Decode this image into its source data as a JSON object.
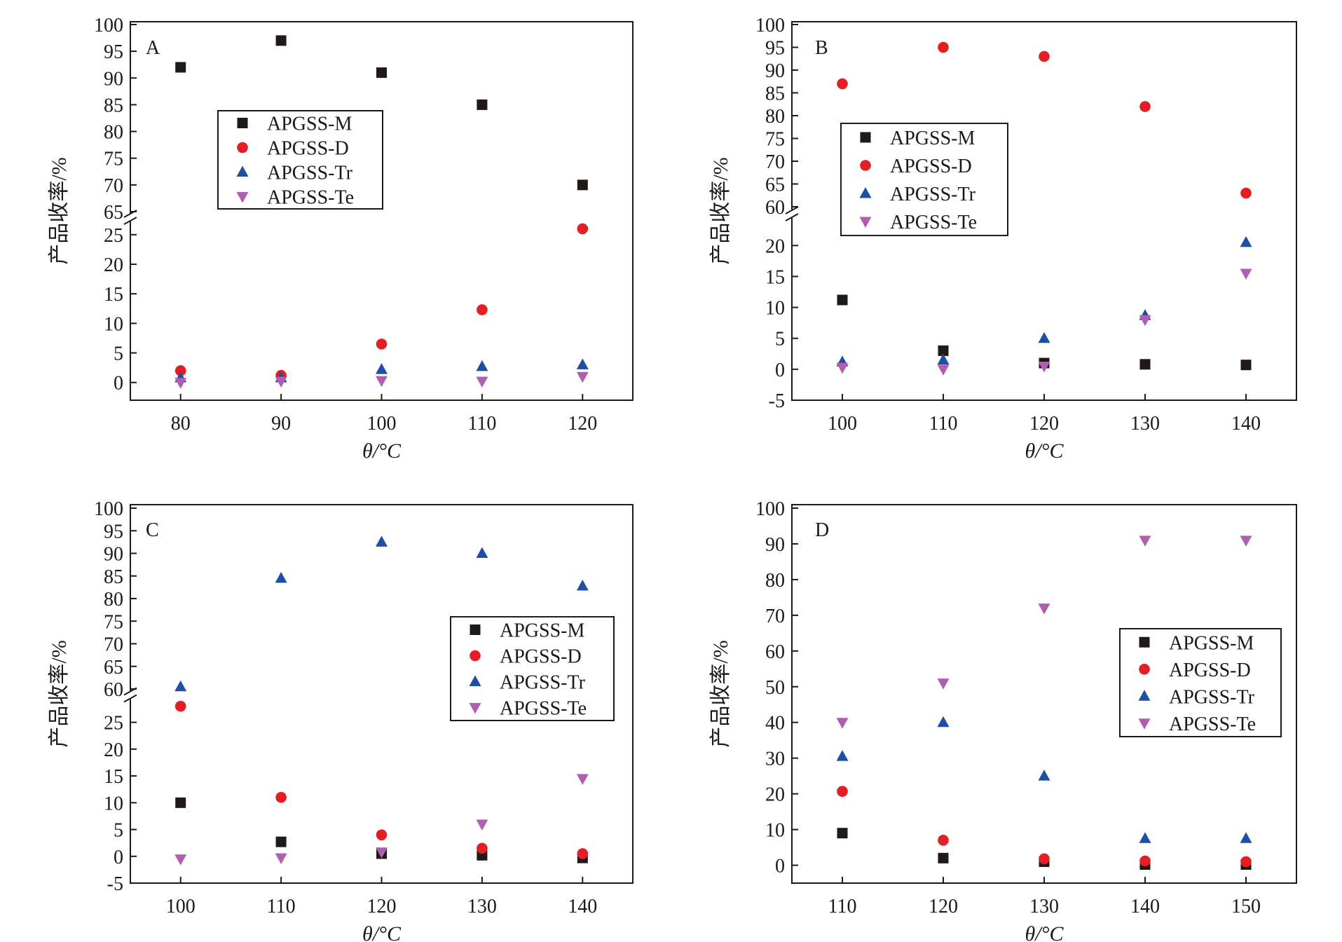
{
  "colors": {
    "APGSS-M": "#1f1a17",
    "APGSS-D": "#e31e24",
    "APGSS-Tr": "#1f4fa3",
    "APGSS-Te": "#b05fb0"
  },
  "chart_data": [
    {
      "type": "scatter",
      "panel_label": "A",
      "xlabel": "θ/°C",
      "ylabel": "产品收率/%",
      "x": [
        80,
        90,
        100,
        110,
        120
      ],
      "x_ticks": [
        "80",
        "90",
        "100",
        "110",
        "120"
      ],
      "xlim": [
        75,
        125
      ],
      "y_axis_break": true,
      "ylim_lower": [
        -3,
        27
      ],
      "ylim_upper": [
        65,
        100
      ],
      "y_ticks_lower": [
        0,
        5,
        10,
        15,
        20,
        25
      ],
      "y_ticks_upper": [
        65,
        70,
        75,
        80,
        85,
        90,
        95,
        100
      ],
      "legend_position": "center",
      "series": [
        {
          "name": "APGSS-M",
          "marker": "square",
          "values": [
            92,
            97,
            91,
            85,
            70
          ]
        },
        {
          "name": "APGSS-D",
          "marker": "circle",
          "values": [
            2,
            1.2,
            6.5,
            12.3,
            26
          ]
        },
        {
          "name": "APGSS-Tr",
          "marker": "triangle-up",
          "values": [
            0.8,
            0.8,
            2.2,
            2.7,
            3
          ]
        },
        {
          "name": "APGSS-Te",
          "marker": "triangle-down",
          "values": [
            0,
            0.2,
            0.3,
            0.2,
            1
          ]
        }
      ]
    },
    {
      "type": "scatter",
      "panel_label": "B",
      "xlabel": "θ/°C",
      "ylabel": "产品收率/%",
      "x": [
        100,
        110,
        120,
        130,
        140
      ],
      "x_ticks": [
        "100",
        "110",
        "120",
        "130",
        "140"
      ],
      "xlim": [
        95,
        145
      ],
      "y_axis_break": true,
      "ylim_lower": [
        -5,
        24
      ],
      "ylim_upper": [
        60,
        100
      ],
      "y_ticks_lower": [
        -5,
        0,
        5,
        10,
        15,
        20
      ],
      "y_ticks_upper": [
        60,
        65,
        70,
        75,
        80,
        85,
        90,
        95,
        100
      ],
      "legend_position": "left",
      "series": [
        {
          "name": "APGSS-M",
          "marker": "square",
          "values": [
            11.2,
            3,
            1,
            0.8,
            0.7
          ]
        },
        {
          "name": "APGSS-D",
          "marker": "circle",
          "values": [
            87,
            95,
            93,
            82,
            63
          ]
        },
        {
          "name": "APGSS-Tr",
          "marker": "triangle-up",
          "values": [
            1.2,
            1.5,
            5,
            8.7,
            20.5
          ]
        },
        {
          "name": "APGSS-Te",
          "marker": "triangle-down",
          "values": [
            0.3,
            0,
            0.5,
            8,
            15.5
          ]
        }
      ]
    },
    {
      "type": "scatter",
      "panel_label": "C",
      "xlabel": "θ/°C",
      "ylabel": "产品收率/%",
      "x": [
        100,
        110,
        120,
        130,
        140
      ],
      "x_ticks": [
        "100",
        "110",
        "120",
        "130",
        "140"
      ],
      "xlim": [
        95,
        145
      ],
      "y_axis_break": true,
      "ylim_lower": [
        -5,
        29
      ],
      "ylim_upper": [
        60,
        100
      ],
      "y_ticks_lower": [
        -5,
        0,
        5,
        10,
        15,
        20,
        25
      ],
      "y_ticks_upper": [
        60,
        65,
        70,
        75,
        80,
        85,
        90,
        95,
        100
      ],
      "legend_position": "right",
      "series": [
        {
          "name": "APGSS-M",
          "marker": "square",
          "values": [
            10,
            2.7,
            0.5,
            0.2,
            -0.3
          ]
        },
        {
          "name": "APGSS-D",
          "marker": "circle",
          "values": [
            28,
            11,
            4,
            1.5,
            0.5
          ]
        },
        {
          "name": "APGSS-Tr",
          "marker": "triangle-up",
          "values": [
            60.5,
            84.5,
            92.5,
            90,
            82.8
          ]
        },
        {
          "name": "APGSS-Te",
          "marker": "triangle-down",
          "values": [
            -0.5,
            -0.3,
            0.8,
            6,
            14.5
          ]
        }
      ]
    },
    {
      "type": "scatter",
      "panel_label": "D",
      "xlabel": "θ/°C",
      "ylabel": "产品收率/%",
      "x": [
        110,
        120,
        130,
        140,
        150
      ],
      "x_ticks": [
        "110",
        "120",
        "130",
        "140",
        "150"
      ],
      "xlim": [
        105,
        155
      ],
      "y_axis_break": false,
      "ylim": [
        -5,
        100
      ],
      "y_ticks": [
        0,
        10,
        20,
        30,
        40,
        50,
        60,
        70,
        80,
        90,
        100
      ],
      "legend_position": "right",
      "series": [
        {
          "name": "APGSS-M",
          "marker": "square",
          "values": [
            9,
            2,
            1,
            0.2,
            0.2
          ]
        },
        {
          "name": "APGSS-D",
          "marker": "circle",
          "values": [
            20.7,
            7,
            1.8,
            1.2,
            1
          ]
        },
        {
          "name": "APGSS-Tr",
          "marker": "triangle-up",
          "values": [
            30.5,
            40,
            25,
            7.5,
            7.5
          ]
        },
        {
          "name": "APGSS-Te",
          "marker": "triangle-down",
          "values": [
            40,
            51,
            72,
            91,
            91
          ]
        }
      ]
    }
  ]
}
